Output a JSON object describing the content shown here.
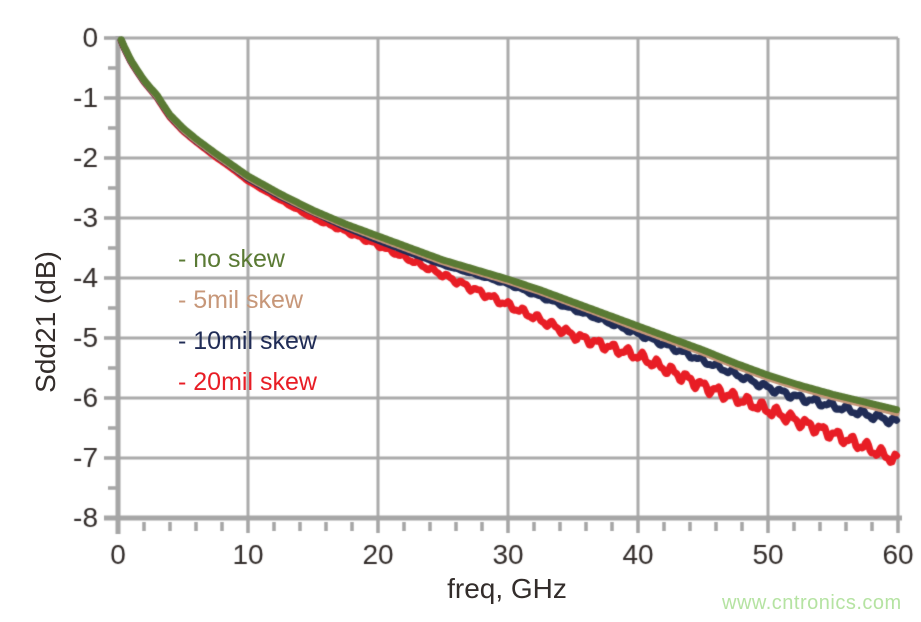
{
  "watermark": {
    "text": "www.cntronics.com",
    "color": "#b5e3a2"
  },
  "chart_data": {
    "type": "line",
    "title": "",
    "xlabel": "freq, GHz",
    "ylabel": "Sdd21 (dB)",
    "xlim": [
      0,
      60
    ],
    "ylim": [
      -8,
      0
    ],
    "x_major_ticks": [
      0,
      10,
      20,
      30,
      40,
      50,
      60
    ],
    "x_minor_step_ghz": 2,
    "y_major_ticks": [
      0,
      -1,
      -2,
      -3,
      -4,
      -5,
      -6,
      -7,
      -8
    ],
    "y_minor_step_db": 0.5,
    "grid": "on",
    "legend_position": "inside-upper-left",
    "grid_color": "#ababab",
    "axis_color": "#a6a6a6",
    "text_color": "#332d2b",
    "background_color": "#ffffff",
    "series": [
      {
        "name": "no-skew",
        "label": "- no skew",
        "color": "#5a7a34",
        "line_width": 7,
        "points": [
          [
            0.25,
            -0.03
          ],
          [
            0.5,
            -0.15
          ],
          [
            1,
            -0.37
          ],
          [
            1.5,
            -0.54
          ],
          [
            2,
            -0.7
          ],
          [
            2.5,
            -0.83
          ],
          [
            3,
            -0.95
          ],
          [
            3.5,
            -1.12
          ],
          [
            4,
            -1.28
          ],
          [
            5,
            -1.5
          ],
          [
            6,
            -1.68
          ],
          [
            7.5,
            -1.92
          ],
          [
            8.75,
            -2.11
          ],
          [
            10,
            -2.3
          ],
          [
            12.5,
            -2.6
          ],
          [
            15,
            -2.87
          ],
          [
            17.5,
            -3.1
          ],
          [
            20,
            -3.3
          ],
          [
            22.5,
            -3.5
          ],
          [
            25,
            -3.7
          ],
          [
            27.5,
            -3.86
          ],
          [
            30,
            -4.02
          ],
          [
            32.5,
            -4.2
          ],
          [
            35,
            -4.4
          ],
          [
            37.5,
            -4.6
          ],
          [
            40,
            -4.8
          ],
          [
            42.5,
            -5.0
          ],
          [
            45,
            -5.2
          ],
          [
            47.5,
            -5.42
          ],
          [
            50,
            -5.62
          ],
          [
            52.5,
            -5.79
          ],
          [
            55,
            -5.94
          ],
          [
            57.5,
            -6.07
          ],
          [
            60,
            -6.2
          ]
        ]
      },
      {
        "name": "5mil-skew",
        "label": "- 5mil skew",
        "color": "#c79779",
        "line_width": 6,
        "points": [
          [
            0.25,
            -0.04
          ],
          [
            0.5,
            -0.17
          ],
          [
            1,
            -0.39
          ],
          [
            1.5,
            -0.56
          ],
          [
            2,
            -0.72
          ],
          [
            2.5,
            -0.85
          ],
          [
            3,
            -0.98
          ],
          [
            3.5,
            -1.14
          ],
          [
            4,
            -1.3
          ],
          [
            5,
            -1.53
          ],
          [
            6,
            -1.71
          ],
          [
            7.5,
            -1.95
          ],
          [
            8.75,
            -2.14
          ],
          [
            10,
            -2.33
          ],
          [
            12.5,
            -2.63
          ],
          [
            15,
            -2.9
          ],
          [
            17.5,
            -3.13
          ],
          [
            20,
            -3.34
          ],
          [
            22.5,
            -3.54
          ],
          [
            25,
            -3.74
          ],
          [
            27.5,
            -3.9
          ],
          [
            30,
            -4.06
          ],
          [
            32.5,
            -4.24
          ],
          [
            35,
            -4.44
          ],
          [
            37.5,
            -4.64
          ],
          [
            40,
            -4.85
          ],
          [
            42.5,
            -5.05
          ],
          [
            45,
            -5.25
          ],
          [
            47.5,
            -5.47
          ],
          [
            50,
            -5.67
          ],
          [
            52.5,
            -5.84
          ],
          [
            55,
            -5.99
          ],
          [
            57.5,
            -6.12
          ],
          [
            60,
            -6.26
          ]
        ]
      },
      {
        "name": "10mil-skew",
        "label": "- 10mil skew",
        "color": "#202c56",
        "line_width": 7,
        "ripple": {
          "start_ghz": 22,
          "full_ghz": 57,
          "max_amplitude_db": 0.07,
          "period_ghz": 1.25
        },
        "points": [
          [
            0.25,
            -0.04
          ],
          [
            0.5,
            -0.17
          ],
          [
            1,
            -0.39
          ],
          [
            1.5,
            -0.56
          ],
          [
            2,
            -0.72
          ],
          [
            2.5,
            -0.85
          ],
          [
            3,
            -0.98
          ],
          [
            3.5,
            -1.14
          ],
          [
            4,
            -1.3
          ],
          [
            5,
            -1.53
          ],
          [
            6,
            -1.71
          ],
          [
            7.5,
            -1.95
          ],
          [
            8.75,
            -2.14
          ],
          [
            10,
            -2.34
          ],
          [
            12.5,
            -2.64
          ],
          [
            15,
            -2.9
          ],
          [
            17.5,
            -3.15
          ],
          [
            20,
            -3.37
          ],
          [
            22.5,
            -3.58
          ],
          [
            25,
            -3.78
          ],
          [
            27.5,
            -3.94
          ],
          [
            30,
            -4.1
          ],
          [
            32.5,
            -4.31
          ],
          [
            35,
            -4.52
          ],
          [
            37.5,
            -4.72
          ],
          [
            40,
            -4.93
          ],
          [
            42.5,
            -5.15
          ],
          [
            45,
            -5.38
          ],
          [
            47.5,
            -5.6
          ],
          [
            50,
            -5.83
          ],
          [
            52.5,
            -6.0
          ],
          [
            55,
            -6.13
          ],
          [
            57.5,
            -6.27
          ],
          [
            60,
            -6.4
          ]
        ]
      },
      {
        "name": "20mil-skew",
        "label": "- 20mil skew",
        "color": "#e81d25",
        "line_width": 7,
        "ripple": {
          "start_ghz": 9,
          "full_ghz": 44,
          "max_amplitude_db": 0.1,
          "period_ghz": 1.15
        },
        "points": [
          [
            0.25,
            -0.05
          ],
          [
            0.5,
            -0.18
          ],
          [
            1,
            -0.4
          ],
          [
            1.5,
            -0.57
          ],
          [
            2,
            -0.73
          ],
          [
            2.5,
            -0.86
          ],
          [
            3,
            -0.99
          ],
          [
            3.5,
            -1.16
          ],
          [
            4,
            -1.32
          ],
          [
            5,
            -1.55
          ],
          [
            6,
            -1.73
          ],
          [
            7.5,
            -1.98
          ],
          [
            8.75,
            -2.17
          ],
          [
            10,
            -2.38
          ],
          [
            12.5,
            -2.7
          ],
          [
            15,
            -3.0
          ],
          [
            17.5,
            -3.22
          ],
          [
            20,
            -3.45
          ],
          [
            22.5,
            -3.7
          ],
          [
            25,
            -3.95
          ],
          [
            27.5,
            -4.2
          ],
          [
            30,
            -4.45
          ],
          [
            32.5,
            -4.7
          ],
          [
            35,
            -4.95
          ],
          [
            37.5,
            -5.13
          ],
          [
            40,
            -5.3
          ],
          [
            42.5,
            -5.55
          ],
          [
            45,
            -5.8
          ],
          [
            47.5,
            -6.0
          ],
          [
            50,
            -6.2
          ],
          [
            52.5,
            -6.4
          ],
          [
            55,
            -6.6
          ],
          [
            57.5,
            -6.82
          ],
          [
            60,
            -7.05
          ]
        ]
      }
    ]
  }
}
